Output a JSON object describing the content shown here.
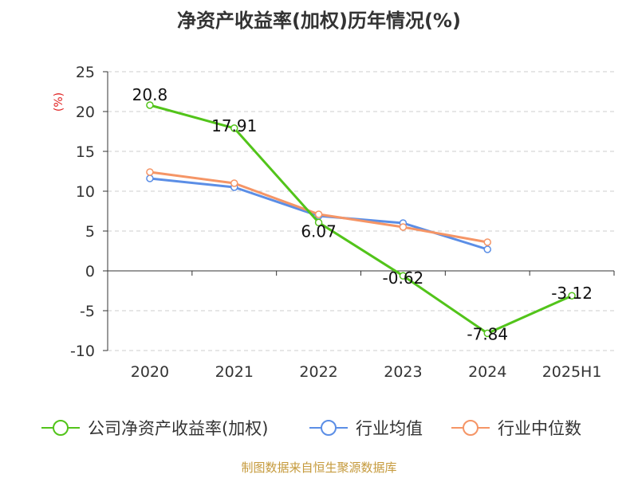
{
  "title": "净资产收益率(加权)历年情况(%)",
  "footer": "制图数据来自恒生聚源数据库",
  "chart_data": {
    "type": "line",
    "title": "净资产收益率(加权)历年情况(%)",
    "ylabel": "(%)",
    "xlabel": "",
    "ylim": [
      -10,
      25
    ],
    "yticks": [
      -10,
      -5,
      0,
      5,
      10,
      15,
      20,
      25
    ],
    "categories": [
      "2020",
      "2021",
      "2022",
      "2023",
      "2024",
      "2025H1"
    ],
    "grid": true,
    "legend_position": "bottom",
    "series": [
      {
        "name": "公司净资产收益率(加权)",
        "color": "#52c41a",
        "values": [
          20.8,
          17.91,
          6.07,
          -0.62,
          -7.84,
          -3.12
        ],
        "labels": [
          "20.8",
          "17.91",
          "6.07",
          "-0.62",
          "-7.84",
          "-3.12"
        ]
      },
      {
        "name": "行业均值",
        "color": "#5b8ee6",
        "values": [
          11.6,
          10.5,
          6.9,
          6.0,
          2.7,
          null
        ]
      },
      {
        "name": "行业中位数",
        "color": "#f59566",
        "values": [
          12.4,
          11.0,
          7.1,
          5.5,
          3.6,
          null
        ]
      }
    ]
  }
}
